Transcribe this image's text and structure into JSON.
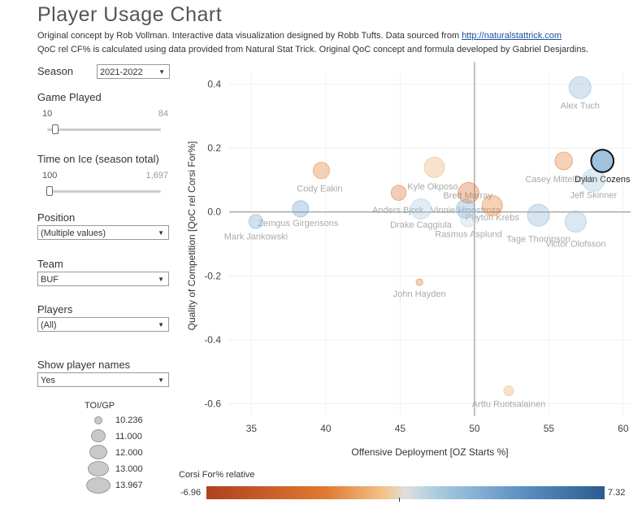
{
  "header": {
    "title": "Player Usage Chart",
    "subtitle_line1_text": "Original concept by Rob Vollman.  Interactive data visualization designed by Robb Tufts.  Data sourced from",
    "subtitle_line1_link": "http://naturalstattrick.com",
    "subtitle_line2": "QoC rel CF% is calculated using data provided from Natural Stat Trick.  Original QoC concept and formula developed by Gabriel Desjardins."
  },
  "controls": {
    "season": {
      "label": "Season",
      "value": "2021-2022"
    },
    "games_played": {
      "label": "Game Played",
      "min": "10",
      "max": "84",
      "position": 0.0
    },
    "toi": {
      "label": "Time on Ice (season total)",
      "min": "100",
      "max": "1,697",
      "position": 0.0
    },
    "position": {
      "label": "Position",
      "value": "(Multiple values)"
    },
    "team": {
      "label": "Team",
      "value": "BUF"
    },
    "players": {
      "label": "Players",
      "value": "(All)"
    },
    "show_names": {
      "label": "Show player names",
      "value": "Yes"
    }
  },
  "size_legend": {
    "title": "TOI/GP",
    "items": [
      {
        "label": "10.236",
        "value": 10.236
      },
      {
        "label": "11.000",
        "value": 11.0
      },
      {
        "label": "12.000",
        "value": 12.0
      },
      {
        "label": "13.000",
        "value": 13.0
      },
      {
        "label": "13.967",
        "value": 13.967
      }
    ]
  },
  "color_legend": {
    "title": "Corsi For% relative",
    "min": "-6.96",
    "max": "7.32"
  },
  "chart_data": {
    "type": "scatter",
    "xlabel": "Offensive Deployment [OZ Starts %]",
    "ylabel": "Quality of Competition [QoC rel Corsi For%]",
    "xlim": [
      33.5,
      60.5
    ],
    "ylim": [
      -0.64,
      0.44
    ],
    "xticks": [
      35,
      40,
      45,
      50,
      55,
      60
    ],
    "yticks": [
      0.4,
      0.2,
      0.0,
      -0.2,
      -0.4,
      -0.6
    ],
    "xticks_labels": [
      "35",
      "40",
      "45",
      "50",
      "55",
      "60"
    ],
    "yticks_labels": [
      "0.4",
      "0.2",
      "0.0",
      "-0.2",
      "-0.4",
      "-0.6"
    ],
    "reference_lines": {
      "x": 50,
      "y": 0
    },
    "grid": true,
    "points": [
      {
        "name": "Alex Tuch",
        "x": 57.1,
        "y": 0.39,
        "toi_gp": 13.8,
        "corsi_rel": 2.5
      },
      {
        "name": "Casey Mittelstadt",
        "x": 56.0,
        "y": 0.16,
        "toi_gp": 12.8,
        "corsi_rel": -3.0
      },
      {
        "name": "Dylan Cozens",
        "x": 58.6,
        "y": 0.16,
        "toi_gp": 13.9,
        "corsi_rel": 2.0
      },
      {
        "name": "Jeff Skinner",
        "x": 58.0,
        "y": 0.1,
        "toi_gp": 13.9,
        "corsi_rel": 1.5
      },
      {
        "name": "Cody Eakin",
        "x": 39.7,
        "y": 0.13,
        "toi_gp": 12.5,
        "corsi_rel": -3.0
      },
      {
        "name": "Kyle Okposo",
        "x": 47.3,
        "y": 0.14,
        "toi_gp": 13.4,
        "corsi_rel": -1.5
      },
      {
        "name": "Anders Bjork",
        "x": 44.9,
        "y": 0.06,
        "toi_gp": 12.2,
        "corsi_rel": -3.5
      },
      {
        "name": "Brett Murray",
        "x": 49.6,
        "y": 0.06,
        "toi_gp": 13.5,
        "corsi_rel": -4.0
      },
      {
        "name": "Vinnie Hinostroza",
        "x": 49.4,
        "y": 0.01,
        "toi_gp": 13.0,
        "corsi_rel": 3.0
      },
      {
        "name": "Peyton Krebs",
        "x": 51.2,
        "y": 0.02,
        "toi_gp": 13.4,
        "corsi_rel": -3.0
      },
      {
        "name": "Drake Caggiula",
        "x": 46.4,
        "y": 0.01,
        "toi_gp": 13.4,
        "corsi_rel": 1.2
      },
      {
        "name": "Rasmus Asplund",
        "x": 49.6,
        "y": -0.02,
        "toi_gp": 12.6,
        "corsi_rel": 0.8
      },
      {
        "name": "Tage Thompson",
        "x": 54.3,
        "y": -0.01,
        "toi_gp": 13.8,
        "corsi_rel": 2.5
      },
      {
        "name": "Victor Olofsson",
        "x": 56.8,
        "y": -0.03,
        "toi_gp": 13.6,
        "corsi_rel": 2.0
      },
      {
        "name": "Zemgus Girgensons",
        "x": 38.3,
        "y": 0.01,
        "toi_gp": 12.5,
        "corsi_rel": 3.5
      },
      {
        "name": "Mark Jankowski",
        "x": 35.3,
        "y": -0.03,
        "toi_gp": 12.0,
        "corsi_rel": 3.0
      },
      {
        "name": "John Hayden",
        "x": 46.3,
        "y": -0.22,
        "toi_gp": 10.3,
        "corsi_rel": -3.0
      },
      {
        "name": "Arttu Ruotsalainen",
        "x": 52.3,
        "y": -0.56,
        "toi_gp": 11.0,
        "corsi_rel": -1.5
      }
    ],
    "highlighted": "Dylan Cozens"
  }
}
